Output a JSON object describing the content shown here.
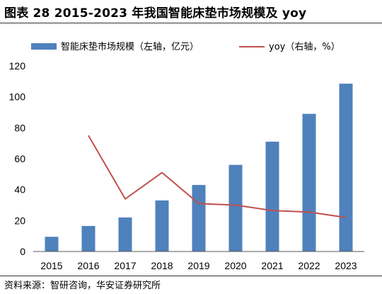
{
  "figure": {
    "title": "图表 28 2015-2023 年我国智能床垫市场规模及 yoy",
    "source": "资料来源：智研咨询，华安证券研究所"
  },
  "colors": {
    "bar": "#4F81BD",
    "line": "#C0504D",
    "axis": "#595959"
  },
  "chart_data": {
    "type": "bar",
    "categories": [
      "2015",
      "2016",
      "2017",
      "2018",
      "2019",
      "2020",
      "2021",
      "2022",
      "2023"
    ],
    "series": [
      {
        "name": "智能床垫市场规模（左轴，亿元）",
        "kind": "bar",
        "axis": "left",
        "values": [
          9.5,
          16.5,
          22,
          33,
          43,
          56,
          71,
          89,
          108.5
        ]
      },
      {
        "name": "yoy（右轴，%）",
        "kind": "line",
        "axis": "right",
        "values": [
          null,
          75,
          34,
          51,
          31,
          30,
          26.5,
          25.5,
          22
        ]
      }
    ],
    "ylim": [
      0,
      120
    ],
    "yticks": [
      "0",
      "20",
      "40",
      "60",
      "80",
      "100",
      "120"
    ],
    "legend_position": "top",
    "grid": false
  }
}
